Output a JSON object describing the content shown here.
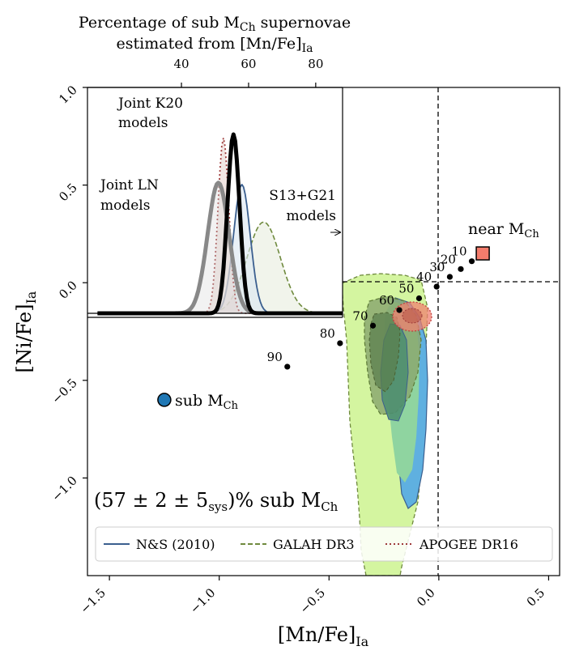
{
  "chart_data": {
    "type": "scatter",
    "xlabel": "[Mn/Fe]",
    "xlabel_sub": "Ia",
    "ylabel": "[Ni/Fe]",
    "ylabel_sub": "Ia",
    "xlim": [
      -1.6,
      0.55
    ],
    "ylim": [
      -1.5,
      1.0
    ],
    "x_ticks": [
      -1.5,
      -1.0,
      -0.5,
      0.0,
      0.5
    ],
    "x_tick_labels": [
      "−1.5",
      "−1.0",
      "−0.5",
      "0.0",
      "0.5"
    ],
    "y_ticks": [
      1.0,
      0.5,
      0.0,
      -0.5,
      -1.0
    ],
    "y_tick_labels": [
      "1.0",
      "0.5",
      "0.0",
      "−0.5",
      "−1.0"
    ],
    "reference_lines": {
      "x": 0.0,
      "y": 0.0
    },
    "mixing_track": {
      "labels": [
        "10",
        "20",
        "30",
        "40",
        "50",
        "60",
        "70",
        "80",
        "90"
      ],
      "x": [
        0.15,
        0.1,
        0.05,
        -0.01,
        -0.09,
        -0.18,
        -0.3,
        -0.45,
        -0.69
      ],
      "y": [
        0.11,
        0.07,
        0.03,
        -0.02,
        -0.08,
        -0.14,
        -0.22,
        -0.31,
        -0.43
      ]
    },
    "near_mch": {
      "label": "near M",
      "sub": "Ch",
      "x": 0.2,
      "y": 0.15,
      "color": "#f47c6c"
    },
    "sub_mch": {
      "label": "sub M",
      "sub": "Ch",
      "x": -1.25,
      "y": -0.6,
      "color": "#1f77b4"
    },
    "result_text": "(57 ± 2 ± 5",
    "result_sys": "sys",
    "result_tail": ")% sub M",
    "result_sub": "Ch",
    "legend": [
      {
        "label": "N&S (2010)",
        "style": "solid",
        "color": "#3b5f8f"
      },
      {
        "label": "GALAH DR3",
        "style": "dashed",
        "color": "#6f8a3e"
      },
      {
        "label": "APOGEE DR16",
        "style": "dotted",
        "color": "#9e3a3a"
      }
    ],
    "inset": {
      "top_axis_title_line1": "Percentage of sub M",
      "top_axis_title_sub": "Ch",
      "top_axis_title_tail": " supernovae",
      "top_axis_title_line2": "estimated from [Mn/Fe]",
      "top_axis_title_line2_sub": "Ia",
      "xlim": [
        12,
        88
      ],
      "x_ticks": [
        40,
        60,
        80
      ],
      "x_tick_labels": [
        "40",
        "60",
        "80"
      ],
      "curves": [
        {
          "name": "Joint LN models",
          "mean": 51,
          "sd": 3.2,
          "peak": 0.73,
          "color": "#888888"
        },
        {
          "name": "Joint K20 models",
          "mean": 55.5,
          "sd": 1.8,
          "peak": 1.0,
          "color": "#000000"
        },
        {
          "name": "GALAH DR3",
          "mean": 64.5,
          "sd": 5.0,
          "peak": 0.51,
          "color": "#6f8a3e"
        },
        {
          "name": "N&S (2010)",
          "mean": 58.0,
          "sd": 2.5,
          "peak": 0.72,
          "color": "#3b5f8f"
        },
        {
          "name": "APOGEE DR16",
          "mean": 52.5,
          "sd": 1.6,
          "peak": 0.98,
          "color": "#9e3a3a"
        }
      ],
      "label_k20_line1": "Joint K20",
      "label_k20_line2": "models",
      "label_ln_line1": "Joint LN",
      "label_ln_line2": "models",
      "label_s13_line1": "S13+G21",
      "label_s13_line2": "models"
    }
  }
}
